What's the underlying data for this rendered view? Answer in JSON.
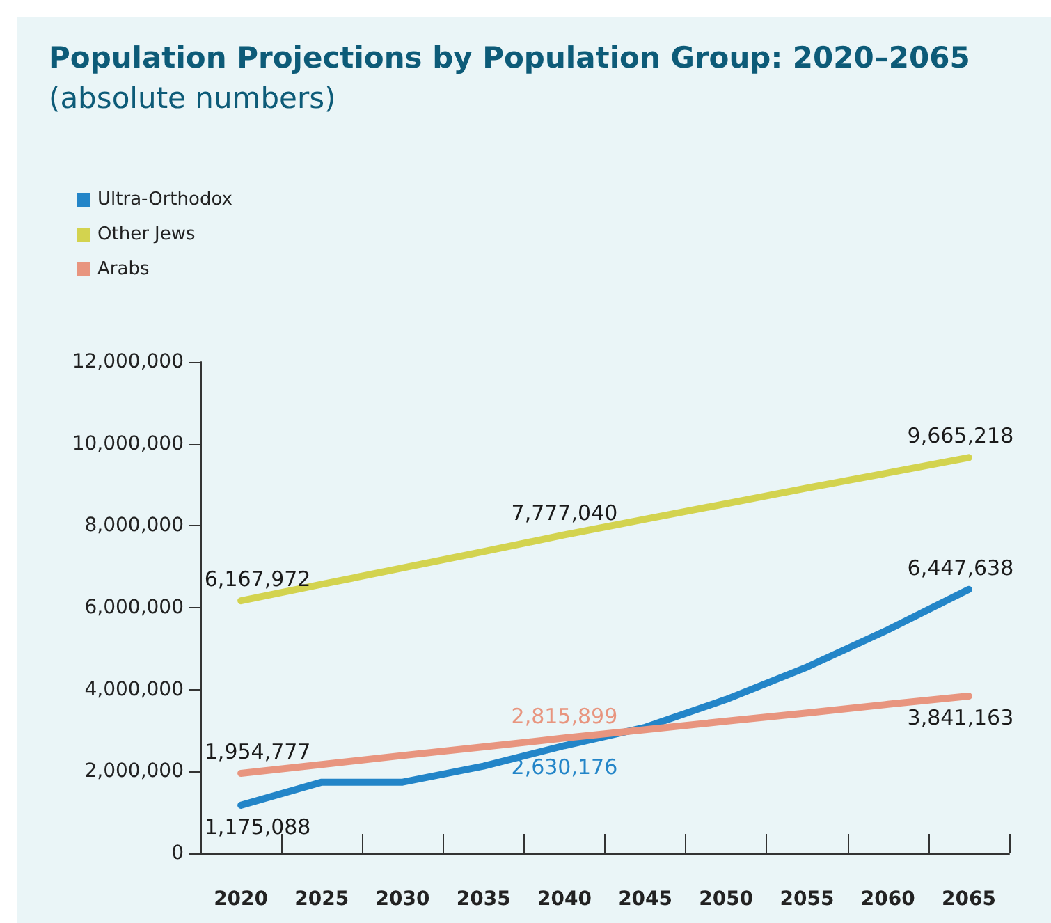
{
  "chart_data": {
    "type": "line",
    "title": "Population Projections by Population Group: 2020–2065",
    "subtitle": "(absolute numbers)",
    "categories": [
      "2020",
      "2025",
      "2030",
      "2035",
      "2040",
      "2045",
      "2050",
      "2055",
      "2060",
      "2065"
    ],
    "series": [
      {
        "name": "Ultra-Orthodox",
        "color": "#2385c8",
        "values": [
          1175088,
          1740000,
          1740000,
          2130000,
          2630176,
          3080000,
          3760000,
          4550000,
          5460000,
          6447638
        ],
        "value_labels": [
          "1,175,088",
          null,
          null,
          null,
          "2,630,176",
          null,
          null,
          null,
          null,
          "6,447,638"
        ]
      },
      {
        "name": "Other Jews",
        "color": "#d3d34f",
        "values": [
          6167972,
          6570000,
          6970000,
          7370000,
          7777040,
          8160000,
          8540000,
          8920000,
          9290000,
          9665218
        ],
        "value_labels": [
          "6,167,972",
          null,
          null,
          null,
          "7,777,040",
          null,
          null,
          null,
          null,
          "9,665,218"
        ]
      },
      {
        "name": "Arabs",
        "color": "#e8957f",
        "values": [
          1954777,
          2170000,
          2390000,
          2600000,
          2815899,
          3020000,
          3230000,
          3430000,
          3640000,
          3841163
        ],
        "value_labels": [
          "1,954,777",
          null,
          null,
          null,
          "2,815,899",
          null,
          null,
          null,
          null,
          "3,841,163"
        ]
      }
    ],
    "ylim": [
      0,
      12000000
    ],
    "yticks": [
      {
        "value": 0,
        "label": "0"
      },
      {
        "value": 2000000,
        "label": "2,000,000"
      },
      {
        "value": 4000000,
        "label": "4,000,000"
      },
      {
        "value": 6000000,
        "label": "6,000,000"
      },
      {
        "value": 8000000,
        "label": "8,000,000"
      },
      {
        "value": 10000000,
        "label": "10,000,000"
      },
      {
        "value": 12000000,
        "label": "12,000,000"
      }
    ],
    "grid": false,
    "legend": "top left",
    "marker": "none",
    "line_style": "solid"
  }
}
